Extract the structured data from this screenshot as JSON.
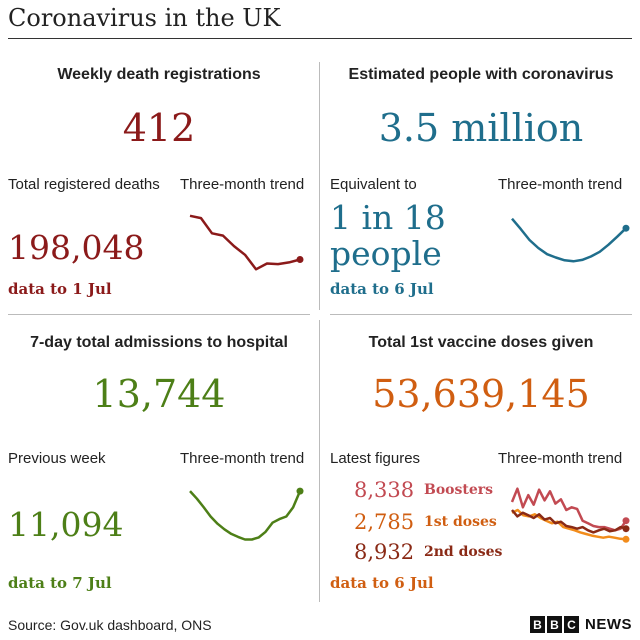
{
  "title": "Coronavirus in the UK",
  "source": "Source: Gov.uk dashboard, ONS",
  "logo": {
    "letters": [
      "B",
      "B",
      "C"
    ],
    "word": "NEWS"
  },
  "colors": {
    "deaths": "#8b1a1a",
    "infections": "#1f6e8c",
    "hospital": "#4d7f17",
    "vaccine": "#d05e11",
    "boosters": "#c24a52",
    "first": "#f28c1b",
    "second": "#8a2a16"
  },
  "panels": {
    "deaths": {
      "title": "Weekly death registrations",
      "hero": "412",
      "sub_label": "Total registered deaths",
      "trend_label": "Three-month trend",
      "big_value": "198,048",
      "note": "data to 1 Jul"
    },
    "infections": {
      "title": "Estimated people with coronavirus",
      "hero": "3.5 million",
      "sub_label": "Equivalent to",
      "trend_label": "Three-month trend",
      "big_value_line1": "1 in 18",
      "big_value_line2": "people",
      "note": "data to 6 Jul"
    },
    "hospital": {
      "title": "7-day total admissions to hospital",
      "hero": "13,744",
      "sub_label": "Previous week",
      "trend_label": "Three-month trend",
      "big_value": "11,094",
      "note": "data to 7 Jul"
    },
    "vaccine": {
      "title": "Total 1st vaccine doses given",
      "hero": "53,639,145",
      "sub_label": "Latest figures",
      "trend_label": "Three-month trend",
      "latest": [
        {
          "value": "8,338",
          "label": "Boosters"
        },
        {
          "value": "2,785",
          "label": "1st doses"
        },
        {
          "value": "8,932",
          "label": "2nd doses"
        }
      ],
      "note": "data to 6 Jul"
    }
  },
  "chart_data": [
    {
      "type": "line",
      "panel": "deaths",
      "title": "Three-month trend",
      "series": [
        {
          "values": [
            100,
            96,
            70,
            66,
            48,
            33,
            8,
            18,
            17,
            20,
            25
          ]
        }
      ],
      "ylim": [
        0,
        110
      ]
    },
    {
      "type": "line",
      "panel": "infections",
      "title": "Three-month trend",
      "series": [
        {
          "values": [
            100,
            78,
            55,
            38,
            25,
            18,
            12,
            10,
            13,
            20,
            30,
            45,
            62,
            80
          ]
        }
      ],
      "ylim": [
        0,
        110
      ]
    },
    {
      "type": "line",
      "panel": "hospital",
      "title": "Three-month trend",
      "series": [
        {
          "values": [
            100,
            85,
            68,
            50,
            36,
            25,
            16,
            10,
            5,
            5,
            9,
            20,
            38,
            45,
            50,
            68,
            100
          ]
        }
      ],
      "ylim": [
        0,
        110
      ]
    },
    {
      "type": "line",
      "panel": "vaccine",
      "title": "Three-month trend",
      "series": [
        {
          "name": "Boosters",
          "values": [
            75,
            100,
            65,
            88,
            70,
            98,
            78,
            95,
            72,
            80,
            60,
            65,
            62,
            40,
            35,
            30,
            28,
            28,
            25,
            22,
            25,
            40
          ]
        },
        {
          "name": "1st doses",
          "values": [
            55,
            60,
            50,
            48,
            52,
            45,
            40,
            35,
            38,
            28,
            25,
            22,
            18,
            15,
            12,
            10,
            8,
            10,
            8,
            6,
            5
          ]
        },
        {
          "name": "2nd doses",
          "values": [
            60,
            48,
            55,
            50,
            45,
            52,
            42,
            45,
            35,
            38,
            30,
            28,
            25,
            28,
            22,
            18,
            22,
            25,
            20,
            22,
            28,
            25
          ]
        }
      ],
      "ylim": [
        0,
        105
      ]
    }
  ]
}
